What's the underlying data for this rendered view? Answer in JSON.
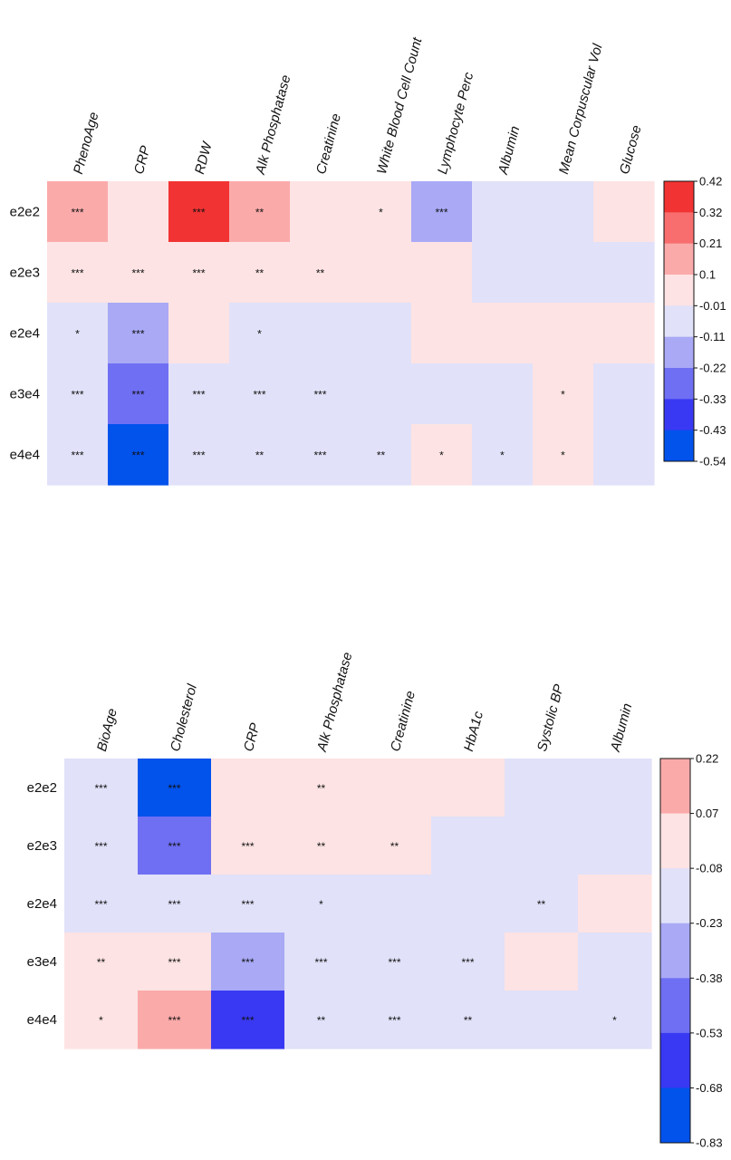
{
  "chart_data": [
    {
      "type": "heatmap",
      "title": "",
      "xlabel": "",
      "ylabel": "",
      "columns": [
        "PhenoAge",
        "CRP",
        "RDW",
        "Alk Phosphatase",
        "Creatinine",
        "White Blood Cell Count",
        "Lymphocyte Perc",
        "Albumin",
        "Mean Corpuscular Vol",
        "Glucose"
      ],
      "rows": [
        "e2e2",
        "e2e3",
        "e2e4",
        "e3e4",
        "e4e4"
      ],
      "colorbar_ticks": [
        "0.42",
        "0.32",
        "0.21",
        "0.1",
        "-0.01",
        "-0.11",
        "-0.22",
        "-0.33",
        "-0.43",
        "-0.54"
      ],
      "colorbar_colors": [
        "#f23333",
        "#f86e6e",
        "#fbaaaa",
        "#fde3e3",
        "#e1e1f9",
        "#a9a9f6",
        "#6f6ff4",
        "#3939f3",
        "#0252ec"
      ],
      "values": [
        [
          0.18,
          0.03,
          0.42,
          0.18,
          0.03,
          0.03,
          -0.18,
          -0.05,
          -0.05,
          0.03
        ],
        [
          0.03,
          0.03,
          0.03,
          0.03,
          0.03,
          0.03,
          0.03,
          -0.05,
          -0.05,
          -0.05
        ],
        [
          -0.05,
          -0.18,
          0.03,
          -0.05,
          -0.05,
          -0.05,
          0.03,
          0.03,
          0.03,
          0.03
        ],
        [
          -0.05,
          -0.28,
          -0.05,
          -0.05,
          -0.05,
          -0.05,
          -0.05,
          -0.05,
          0.03,
          -0.05
        ],
        [
          -0.05,
          -0.5,
          -0.05,
          -0.05,
          -0.05,
          -0.05,
          0.03,
          -0.05,
          0.03,
          -0.05
        ]
      ],
      "significance": [
        [
          "***",
          "",
          "***",
          "**",
          "",
          "*",
          "***",
          "",
          "",
          ""
        ],
        [
          "***",
          "***",
          "***",
          "**",
          "**",
          "",
          "",
          "",
          "",
          ""
        ],
        [
          "*",
          "***",
          "",
          "*",
          "",
          "",
          "",
          "",
          "",
          ""
        ],
        [
          "***",
          "***",
          "***",
          "***",
          "***",
          "",
          "",
          "",
          "*",
          ""
        ],
        [
          "***",
          "***",
          "***",
          "**",
          "***",
          "**",
          "*",
          "*",
          "*",
          ""
        ]
      ]
    },
    {
      "type": "heatmap",
      "title": "",
      "xlabel": "",
      "ylabel": "",
      "columns": [
        "BioAge",
        "Cholesterol",
        "CRP",
        "Alk Phosphatase",
        "Creatinine",
        "HbA1c",
        "Systolic BP",
        "Albumin"
      ],
      "rows": [
        "e2e2",
        "e2e3",
        "e2e4",
        "e3e4",
        "e4e4"
      ],
      "colorbar_ticks": [
        "0.22",
        "0.07",
        "-0.08",
        "-0.23",
        "-0.38",
        "-0.53",
        "-0.68",
        "-0.83"
      ],
      "colorbar_colors": [
        "#fbaaaa",
        "#fde3e3",
        "#e1e1f9",
        "#a9a9f6",
        "#6f6ff4",
        "#3939f3",
        "#0252ec"
      ],
      "values": [
        [
          -0.15,
          -0.75,
          0.0,
          0.0,
          0.0,
          0.0,
          -0.15,
          -0.15
        ],
        [
          -0.15,
          -0.45,
          0.0,
          0.0,
          0.0,
          -0.15,
          -0.15,
          -0.15
        ],
        [
          -0.15,
          -0.15,
          -0.15,
          -0.15,
          -0.15,
          -0.15,
          -0.15,
          0.0
        ],
        [
          0.0,
          0.0,
          -0.3,
          -0.15,
          -0.15,
          -0.15,
          0.0,
          -0.15
        ],
        [
          0.0,
          0.15,
          -0.6,
          -0.15,
          -0.15,
          -0.15,
          -0.15,
          -0.15
        ]
      ],
      "significance": [
        [
          "***",
          "***",
          "",
          "**",
          "",
          "",
          "",
          ""
        ],
        [
          "***",
          "***",
          "***",
          "**",
          "**",
          "",
          "",
          ""
        ],
        [
          "***",
          "***",
          "***",
          "*",
          "",
          "",
          "**",
          ""
        ],
        [
          "**",
          "***",
          "***",
          "***",
          "***",
          "***",
          "",
          ""
        ],
        [
          "*",
          "***",
          "***",
          "**",
          "***",
          "**",
          "",
          "*"
        ]
      ]
    }
  ]
}
